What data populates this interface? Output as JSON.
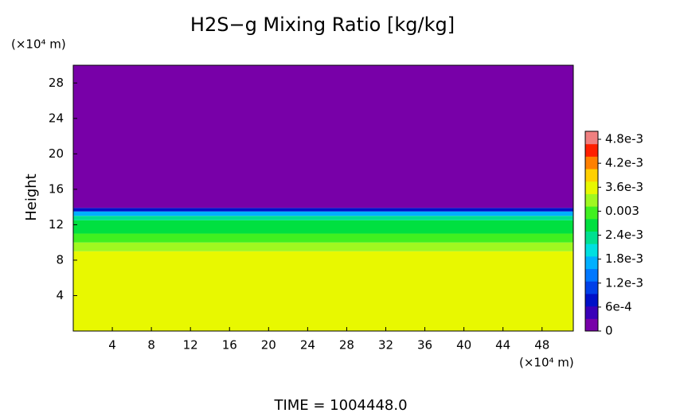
{
  "chart_data": {
    "type": "contour",
    "title": "H2S−g Mixing Ratio [kg/kg]",
    "ylabel": "Height",
    "y_unit": "(×10⁴ m)",
    "x_unit": "(×10⁴ m)",
    "footer": "TIME = 1004448.0",
    "xlim": [
      0,
      51.2
    ],
    "xticks": [
      4,
      8,
      12,
      16,
      20,
      24,
      28,
      32,
      36,
      40,
      44,
      48
    ],
    "ylim": [
      0,
      30
    ],
    "yticks": [
      4,
      8,
      12,
      16,
      20,
      24,
      28
    ],
    "heights": [
      0,
      9,
      10,
      11,
      12.5,
      13,
      13.5,
      13.9,
      30
    ],
    "values": [
      0.0037,
      0.0034,
      0.0031,
      0.0027,
      0.0022,
      0.0016,
      0.0008,
      0
    ],
    "clim": [
      0,
      0.005
    ],
    "cticks": [
      0,
      {
        "value": 0.0006,
        "label": "6e-4"
      },
      {
        "value": 0.0012,
        "label": "1.2e-3"
      },
      {
        "value": 0.0018,
        "label": "1.8e-3"
      },
      {
        "value": 0.0024,
        "label": "2.4e-3"
      },
      0.003,
      {
        "value": 0.0036,
        "label": "3.6e-3"
      },
      {
        "value": 0.0042,
        "label": "4.2e-3"
      },
      {
        "value": 0.0048,
        "label": "4.8e-3"
      }
    ],
    "colormap": [
      "#7800a8",
      "#3a00b8",
      "#0010c8",
      "#0040e8",
      "#0078ff",
      "#00b0ff",
      "#00e0e0",
      "#00e090",
      "#00e040",
      "#40f020",
      "#a0f820",
      "#e8f800",
      "#ffd000",
      "#ff8000",
      "#ff2000",
      "#f08080"
    ]
  }
}
